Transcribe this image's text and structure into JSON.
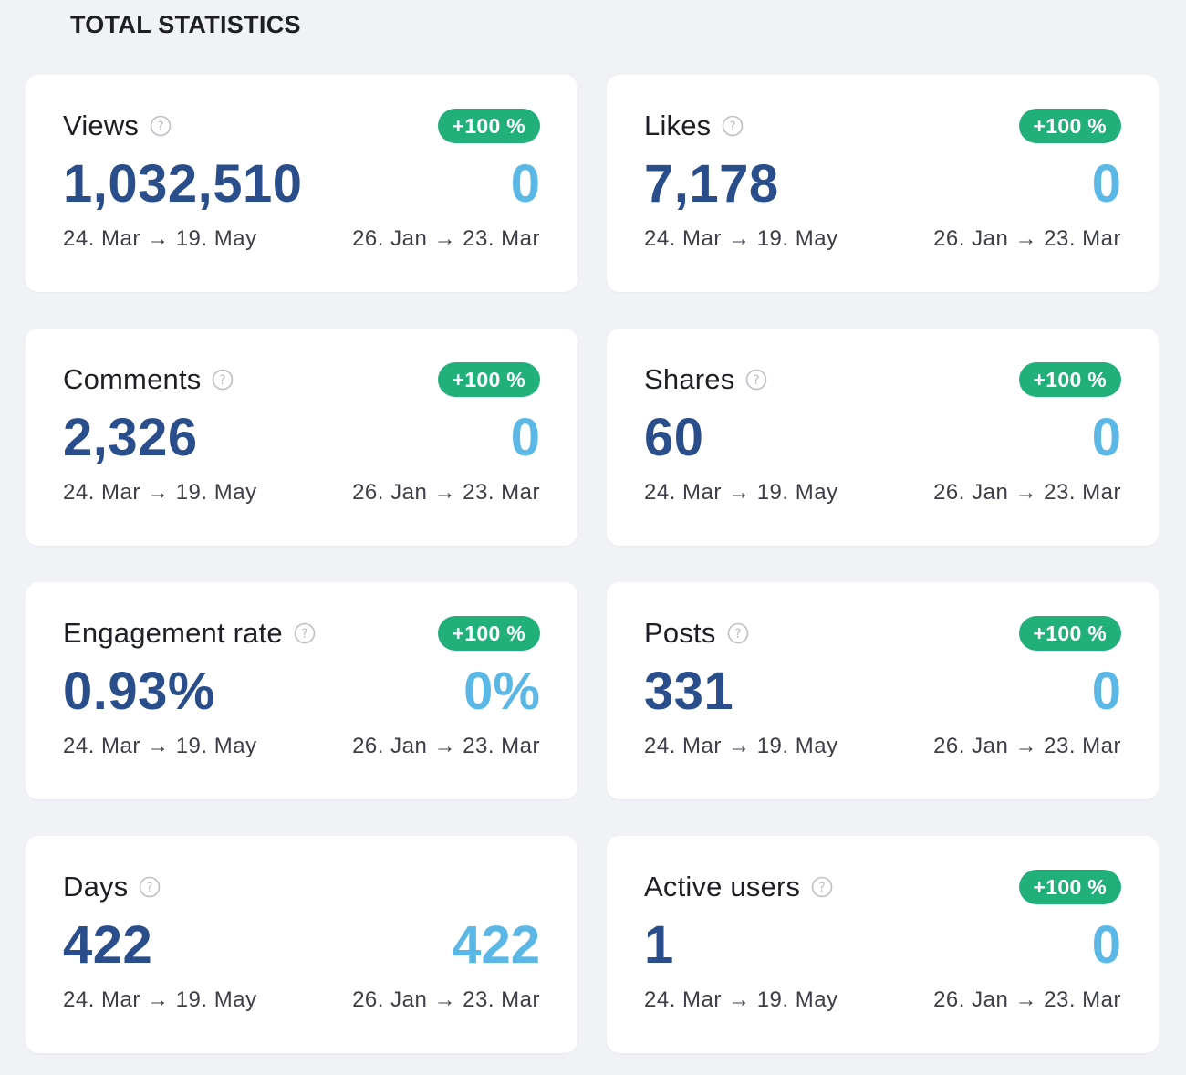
{
  "header": {
    "title": "TOTAL STATISTICS"
  },
  "ranges": {
    "current": "24. Mar → 19. May",
    "previous": "26. Jan → 23. Mar"
  },
  "colors": {
    "badge": "#22b07a",
    "current_value": "#2a4e8c",
    "previous_value": "#5bb8e6"
  },
  "icons": {
    "help": "question-circle-icon"
  },
  "cards": [
    {
      "title": "Views",
      "badge": "+100 %",
      "current": "1,032,510",
      "previous": "0"
    },
    {
      "title": "Likes",
      "badge": "+100 %",
      "current": "7,178",
      "previous": "0"
    },
    {
      "title": "Comments",
      "badge": "+100 %",
      "current": "2,326",
      "previous": "0"
    },
    {
      "title": "Shares",
      "badge": "+100 %",
      "current": "60",
      "previous": "0"
    },
    {
      "title": "Engagement rate",
      "badge": "+100 %",
      "current": "0.93%",
      "previous": "0%"
    },
    {
      "title": "Posts",
      "badge": "+100 %",
      "current": "331",
      "previous": "0"
    },
    {
      "title": "Days",
      "badge": null,
      "current": "422",
      "previous": "422"
    },
    {
      "title": "Active users",
      "badge": "+100 %",
      "current": "1",
      "previous": "0"
    }
  ]
}
